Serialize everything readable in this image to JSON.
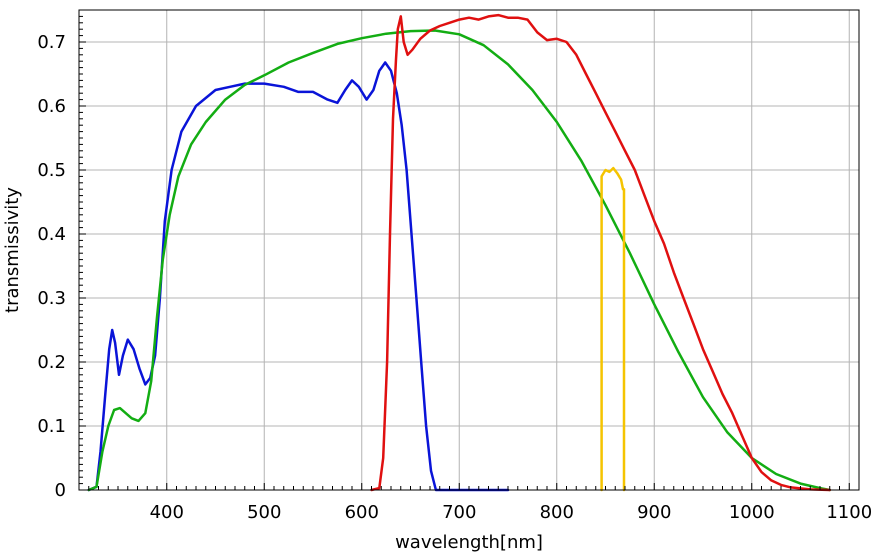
{
  "chart_data": {
    "type": "line",
    "xlabel": "wavelength[nm]",
    "ylabel": "transmissivity",
    "xlim": [
      310,
      1110
    ],
    "ylim": [
      0,
      0.75
    ],
    "grid": true,
    "x_ticks": [
      400,
      500,
      600,
      700,
      800,
      900,
      1000,
      1100
    ],
    "y_ticks": [
      0,
      0.1,
      0.2,
      0.3,
      0.4,
      0.5,
      0.6,
      0.7
    ],
    "x_tick_labels": [
      "400",
      "500",
      "600",
      "700",
      "800",
      "900",
      "1000",
      "1100"
    ],
    "y_tick_labels": [
      "0",
      "0.1",
      "0.2",
      "0.3",
      "0.4",
      "0.5",
      "0.6",
      "0.7"
    ],
    "series": [
      {
        "color": "#0a14d8",
        "points": [
          [
            320,
            0
          ],
          [
            328,
            0.005
          ],
          [
            332,
            0.06
          ],
          [
            337,
            0.15
          ],
          [
            341,
            0.22
          ],
          [
            344,
            0.25
          ],
          [
            347,
            0.23
          ],
          [
            351,
            0.18
          ],
          [
            355,
            0.21
          ],
          [
            360,
            0.235
          ],
          [
            366,
            0.22
          ],
          [
            372,
            0.19
          ],
          [
            378,
            0.165
          ],
          [
            383,
            0.175
          ],
          [
            388,
            0.21
          ],
          [
            393,
            0.3
          ],
          [
            398,
            0.42
          ],
          [
            405,
            0.5
          ],
          [
            415,
            0.56
          ],
          [
            430,
            0.6
          ],
          [
            450,
            0.625
          ],
          [
            465,
            0.63
          ],
          [
            480,
            0.635
          ],
          [
            500,
            0.635
          ],
          [
            520,
            0.63
          ],
          [
            535,
            0.622
          ],
          [
            550,
            0.622
          ],
          [
            565,
            0.61
          ],
          [
            575,
            0.605
          ],
          [
            583,
            0.625
          ],
          [
            590,
            0.64
          ],
          [
            597,
            0.63
          ],
          [
            605,
            0.61
          ],
          [
            612,
            0.625
          ],
          [
            618,
            0.655
          ],
          [
            624,
            0.668
          ],
          [
            630,
            0.655
          ],
          [
            636,
            0.62
          ],
          [
            641,
            0.57
          ],
          [
            646,
            0.5
          ],
          [
            651,
            0.4
          ],
          [
            656,
            0.3
          ],
          [
            661,
            0.2
          ],
          [
            666,
            0.1
          ],
          [
            671,
            0.03
          ],
          [
            676,
            0
          ],
          [
            750,
            0
          ]
        ]
      },
      {
        "color": "#13ad13",
        "points": [
          [
            320,
            0
          ],
          [
            328,
            0.005
          ],
          [
            334,
            0.06
          ],
          [
            340,
            0.1
          ],
          [
            346,
            0.125
          ],
          [
            352,
            0.128
          ],
          [
            358,
            0.12
          ],
          [
            364,
            0.112
          ],
          [
            371,
            0.108
          ],
          [
            378,
            0.12
          ],
          [
            384,
            0.17
          ],
          [
            390,
            0.27
          ],
          [
            396,
            0.36
          ],
          [
            403,
            0.43
          ],
          [
            412,
            0.49
          ],
          [
            425,
            0.54
          ],
          [
            440,
            0.575
          ],
          [
            460,
            0.61
          ],
          [
            480,
            0.633
          ],
          [
            500,
            0.648
          ],
          [
            525,
            0.668
          ],
          [
            550,
            0.683
          ],
          [
            575,
            0.697
          ],
          [
            600,
            0.706
          ],
          [
            625,
            0.713
          ],
          [
            650,
            0.717
          ],
          [
            675,
            0.718
          ],
          [
            700,
            0.712
          ],
          [
            725,
            0.695
          ],
          [
            750,
            0.665
          ],
          [
            775,
            0.625
          ],
          [
            800,
            0.575
          ],
          [
            825,
            0.515
          ],
          [
            850,
            0.445
          ],
          [
            875,
            0.37
          ],
          [
            900,
            0.29
          ],
          [
            925,
            0.215
          ],
          [
            950,
            0.145
          ],
          [
            975,
            0.09
          ],
          [
            1000,
            0.05
          ],
          [
            1025,
            0.025
          ],
          [
            1050,
            0.01
          ],
          [
            1070,
            0.003
          ],
          [
            1080,
            0
          ]
        ]
      },
      {
        "color": "#e01010",
        "points": [
          [
            610,
            0
          ],
          [
            618,
            0.003
          ],
          [
            622,
            0.05
          ],
          [
            626,
            0.2
          ],
          [
            629,
            0.4
          ],
          [
            632,
            0.58
          ],
          [
            635,
            0.67
          ],
          [
            637,
            0.72
          ],
          [
            640,
            0.74
          ],
          [
            643,
            0.7
          ],
          [
            647,
            0.68
          ],
          [
            652,
            0.688
          ],
          [
            660,
            0.705
          ],
          [
            670,
            0.718
          ],
          [
            680,
            0.725
          ],
          [
            690,
            0.73
          ],
          [
            700,
            0.735
          ],
          [
            710,
            0.738
          ],
          [
            720,
            0.735
          ],
          [
            730,
            0.74
          ],
          [
            740,
            0.742
          ],
          [
            750,
            0.738
          ],
          [
            760,
            0.738
          ],
          [
            770,
            0.735
          ],
          [
            780,
            0.715
          ],
          [
            790,
            0.703
          ],
          [
            800,
            0.705
          ],
          [
            810,
            0.7
          ],
          [
            820,
            0.68
          ],
          [
            830,
            0.65
          ],
          [
            840,
            0.62
          ],
          [
            850,
            0.59
          ],
          [
            860,
            0.56
          ],
          [
            870,
            0.53
          ],
          [
            880,
            0.5
          ],
          [
            890,
            0.46
          ],
          [
            900,
            0.42
          ],
          [
            910,
            0.385
          ],
          [
            920,
            0.34
          ],
          [
            930,
            0.3
          ],
          [
            940,
            0.26
          ],
          [
            950,
            0.22
          ],
          [
            960,
            0.185
          ],
          [
            970,
            0.15
          ],
          [
            980,
            0.12
          ],
          [
            990,
            0.085
          ],
          [
            1000,
            0.05
          ],
          [
            1010,
            0.028
          ],
          [
            1020,
            0.015
          ],
          [
            1030,
            0.008
          ],
          [
            1040,
            0.004
          ],
          [
            1060,
            0.001
          ],
          [
            1080,
            0
          ]
        ]
      },
      {
        "color": "#f5c400",
        "points": [
          [
            846,
            0
          ],
          [
            846,
            0.49
          ],
          [
            850,
            0.5
          ],
          [
            854,
            0.497
          ],
          [
            858,
            0.503
          ],
          [
            862,
            0.495
          ],
          [
            866,
            0.485
          ],
          [
            868,
            0.47
          ],
          [
            869,
            0.47
          ],
          [
            869,
            0
          ]
        ]
      }
    ]
  }
}
